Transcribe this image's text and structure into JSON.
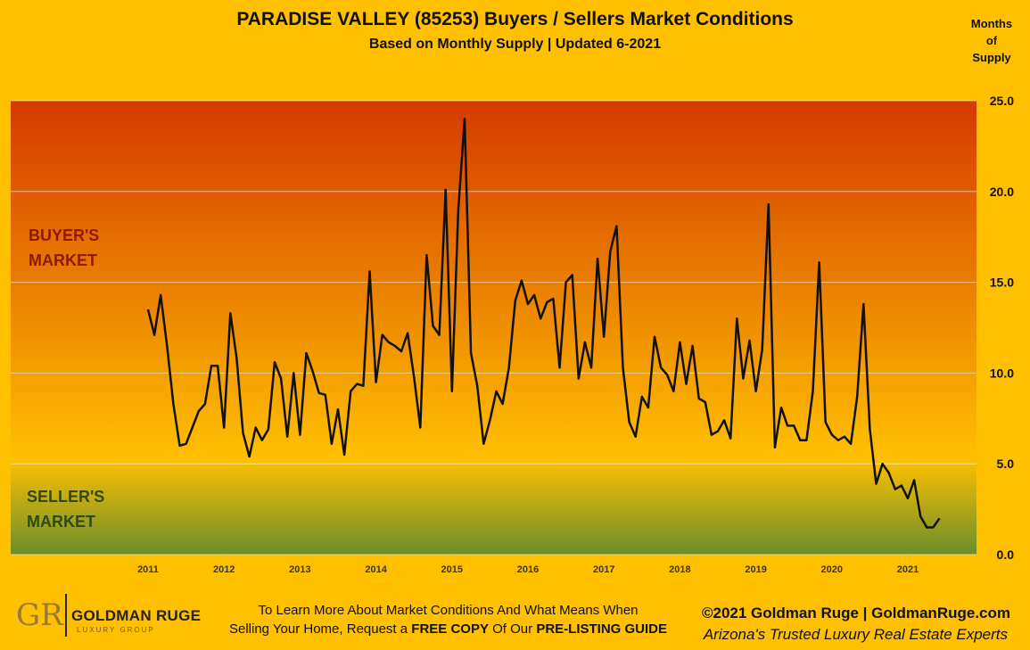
{
  "header": {
    "title": "PARADISE VALLEY (85253) Buyers / Sellers Market Conditions",
    "subtitle": "Based on Monthly Supply | Updated 6-2021"
  },
  "regions": {
    "buyers_line1": "BUYER'S",
    "buyers_line2": "MARKET",
    "sellers_line1": "SELLER'S",
    "sellers_line2": "MARKET"
  },
  "footer": {
    "logo_mark": "GR",
    "logo_name": "GOLDMAN RUGE",
    "logo_sub": "LUXURY GROUP",
    "cta_line1": "To Learn More About Market Conditions And What Means When",
    "cta_line2_pre": "Selling Your Home, Request a ",
    "cta_free_copy": "FREE COPY",
    "cta_mid": " Of Our ",
    "cta_guide": "PRE-LISTING GUIDE",
    "copyright": "©2021 Goldman Ruge  |  GoldmanRuge.com",
    "tagline": "Arizona's Trusted Luxury Real Estate Experts"
  },
  "chart_data": {
    "type": "line",
    "title": "PARADISE VALLEY (85253) Buyers / Sellers Market Conditions",
    "subtitle": "Based on Monthly Supply | Updated 6-2021",
    "ylabel_lines": [
      "Months",
      "of",
      "Supply"
    ],
    "ylim": [
      0,
      25
    ],
    "yticks": [
      "0.0",
      "5.0",
      "10.0",
      "15.0",
      "20.0",
      "25.0"
    ],
    "ytick_values": [
      0,
      5,
      10,
      15,
      20,
      25
    ],
    "x_start": "2011-01",
    "xtick_labels": [
      "2011",
      "2012",
      "2013",
      "2014",
      "2015",
      "2016",
      "2017",
      "2018",
      "2019",
      "2020",
      "2021"
    ],
    "grid": true,
    "colors": {
      "line": "#111111",
      "buyers_top": "#d43a00",
      "buyers_bottom": "#ffc000",
      "sellers_top": "#ffc000",
      "sellers_bottom": "#6a8e2a"
    },
    "series": [
      {
        "values": [
          13.5,
          12.1,
          14.3,
          11.5,
          8.3,
          6.0,
          6.1,
          7.0,
          7.9,
          8.3,
          10.4,
          10.4,
          7.0,
          13.3,
          10.8,
          6.7,
          5.4,
          7.0,
          6.3,
          6.9,
          10.6,
          9.7,
          6.5,
          10.0,
          6.6,
          11.1,
          10.1,
          8.9,
          8.8,
          6.1,
          8.0,
          5.5,
          9.0,
          9.4,
          9.3,
          15.6,
          9.5,
          12.1,
          11.7,
          11.5,
          11.2,
          12.2,
          9.8,
          7.0,
          16.5,
          12.6,
          12.1,
          20.1,
          9.0,
          19.0,
          24.0,
          11.1,
          9.3,
          6.1,
          7.4,
          9.0,
          8.3,
          10.3,
          14.0,
          15.1,
          13.8,
          14.3,
          13.0,
          13.9,
          14.1,
          10.3,
          15.0,
          15.4,
          9.7,
          11.7,
          10.3,
          16.3,
          12.0,
          16.7,
          18.1,
          10.3,
          7.3,
          6.5,
          8.7,
          8.1,
          12.0,
          10.3,
          9.9,
          9.0,
          11.7,
          9.4,
          11.5,
          8.6,
          8.4,
          6.6,
          6.8,
          7.4,
          6.4,
          13.0,
          9.7,
          11.8,
          9.0,
          11.3,
          19.3,
          5.9,
          8.1,
          7.1,
          7.1,
          6.3,
          6.3,
          9.0,
          16.1,
          7.3,
          6.6,
          6.3,
          6.5,
          6.1,
          8.7,
          13.8,
          6.9,
          3.9,
          5.0,
          4.5,
          3.6,
          3.8,
          3.1,
          4.1,
          2.1,
          1.5,
          1.5,
          2.0
        ]
      }
    ]
  }
}
